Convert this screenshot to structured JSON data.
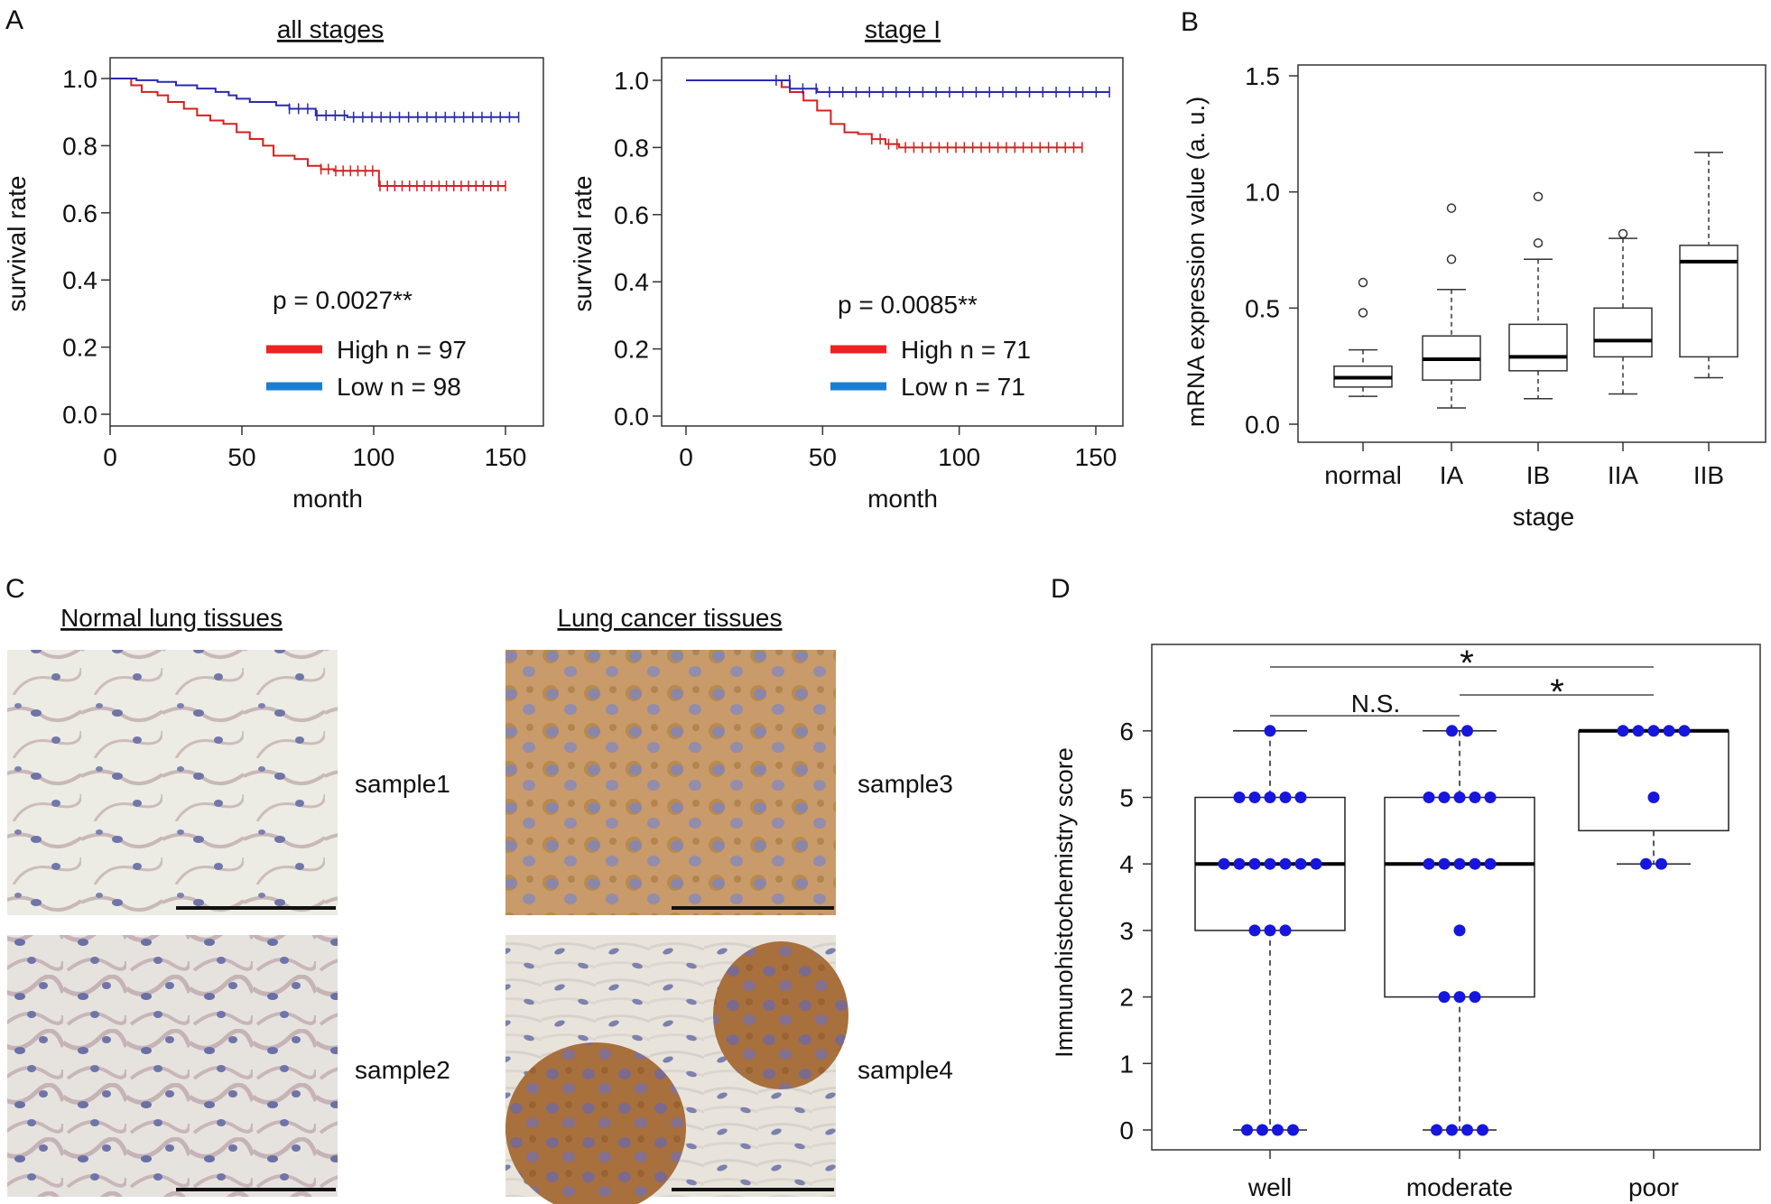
{
  "panels": {
    "A": {
      "letter": "A",
      "plots": [
        {
          "title": "all stages",
          "xlabel": "month",
          "ylabel": "survival rate",
          "xticks": [
            0,
            50,
            100,
            150
          ],
          "yticks": [
            "0.0",
            "0.2",
            "0.4",
            "0.6",
            "0.8",
            "1.0"
          ],
          "pvalue": "p = 0.0027**",
          "legend": [
            {
              "label": "High n = 97",
              "color": "#ee2222"
            },
            {
              "label": "Low n = 98",
              "color": "#1a7fd4"
            }
          ]
        },
        {
          "title": "stage I",
          "xlabel": "month",
          "ylabel": "survival rate",
          "xticks": [
            0,
            50,
            100,
            150
          ],
          "yticks": [
            "0.0",
            "0.2",
            "0.4",
            "0.6",
            "0.8",
            "1.0"
          ],
          "pvalue": "p = 0.0085**",
          "legend": [
            {
              "label": "High n = 71",
              "color": "#ee2222"
            },
            {
              "label": "Low n = 71",
              "color": "#1a7fd4"
            }
          ]
        }
      ]
    },
    "B": {
      "letter": "B",
      "xlabel": "stage",
      "ylabel": "mRNA expression value (a. u.)",
      "yticks": [
        "0.0",
        "0.5",
        "1.0",
        "1.5"
      ]
    },
    "C": {
      "letter": "C",
      "normal_label": "Normal lung tissues",
      "cancer_label": "Lung cancer tissues",
      "samples": [
        "sample1",
        "sample2",
        "sample3",
        "sample4"
      ]
    },
    "D": {
      "letter": "D",
      "ylabel": "Immunohistochemistry score",
      "yticks": [
        "0",
        "1",
        "2",
        "3",
        "4",
        "5",
        "6"
      ],
      "sig_labels": [
        "*",
        "N.S.",
        "*"
      ]
    }
  },
  "chart_data": [
    {
      "type": "line",
      "title": "all stages",
      "xlabel": "month",
      "ylabel": "survival rate",
      "xlim": [
        0,
        155
      ],
      "ylim": [
        0,
        1
      ],
      "series": [
        {
          "name": "High n = 97",
          "color": "#ee2222",
          "x": [
            0,
            8,
            12,
            18,
            22,
            28,
            33,
            38,
            43,
            48,
            53,
            58,
            62,
            70,
            75,
            80,
            85,
            102,
            150
          ],
          "y": [
            1.0,
            0.98,
            0.96,
            0.95,
            0.93,
            0.91,
            0.89,
            0.875,
            0.865,
            0.84,
            0.82,
            0.8,
            0.77,
            0.76,
            0.74,
            0.73,
            0.725,
            0.68,
            0.68
          ]
        },
        {
          "name": "Low n = 98",
          "color": "#1a7fd4",
          "x": [
            0,
            10,
            18,
            25,
            33,
            40,
            45,
            48,
            53,
            63,
            68,
            78,
            90,
            155
          ],
          "y": [
            1.0,
            0.995,
            0.99,
            0.98,
            0.97,
            0.96,
            0.95,
            0.94,
            0.93,
            0.92,
            0.91,
            0.89,
            0.885,
            0.885
          ]
        }
      ]
    },
    {
      "type": "line",
      "title": "stage I",
      "xlabel": "month",
      "ylabel": "survival rate",
      "xlim": [
        0,
        155
      ],
      "ylim": [
        0,
        1
      ],
      "series": [
        {
          "name": "High n = 71",
          "color": "#ee2222",
          "x": [
            0,
            30,
            35,
            38,
            43,
            48,
            53,
            58,
            63,
            68,
            73,
            78,
            145
          ],
          "y": [
            1.0,
            1.0,
            0.98,
            0.965,
            0.94,
            0.91,
            0.87,
            0.845,
            0.84,
            0.825,
            0.81,
            0.8,
            0.8
          ]
        },
        {
          "name": "Low n = 71",
          "color": "#1a7fd4",
          "x": [
            0,
            33,
            38,
            48,
            155
          ],
          "y": [
            1.0,
            1.0,
            0.975,
            0.965,
            0.965
          ]
        }
      ]
    },
    {
      "type": "box",
      "xlabel": "stage",
      "ylabel": "mRNA expression value (a. u.)",
      "ylim": [
        0,
        1.5
      ],
      "categories": [
        "normal",
        "IA",
        "IB",
        "IIA",
        "IIB"
      ],
      "boxes": [
        {
          "min": 0.12,
          "q1": 0.16,
          "median": 0.2,
          "q3": 0.25,
          "max": 0.32,
          "outliers": [
            0.48,
            0.61
          ]
        },
        {
          "min": 0.07,
          "q1": 0.19,
          "median": 0.28,
          "q3": 0.38,
          "max": 0.58,
          "outliers": [
            0.71,
            0.93
          ]
        },
        {
          "min": 0.11,
          "q1": 0.23,
          "median": 0.29,
          "q3": 0.43,
          "max": 0.71,
          "outliers": [
            0.78,
            0.98
          ]
        },
        {
          "min": 0.13,
          "q1": 0.29,
          "median": 0.36,
          "q3": 0.5,
          "max": 0.8,
          "outliers": [
            0.82
          ]
        },
        {
          "min": 0.2,
          "q1": 0.29,
          "median": 0.7,
          "q3": 0.77,
          "max": 1.17,
          "outliers": []
        }
      ]
    },
    {
      "type": "box",
      "xlabel": "",
      "ylabel": "Immunohistochemistry score",
      "ylim": [
        -0.3,
        7.3
      ],
      "categories": [
        "well",
        "moderate",
        "poor"
      ],
      "boxes": [
        {
          "min": 0,
          "q1": 3,
          "median": 4,
          "q3": 5,
          "max": 6
        },
        {
          "min": 0,
          "q1": 2,
          "median": 4,
          "q3": 5,
          "max": 6
        },
        {
          "min": 4,
          "q1": 4.5,
          "median": 6,
          "q3": 6,
          "max": 6
        }
      ],
      "points": [
        {
          "group": 0,
          "score": 6,
          "count": 1
        },
        {
          "group": 0,
          "score": 5,
          "count": 5
        },
        {
          "group": 0,
          "score": 4,
          "count": 7
        },
        {
          "group": 0,
          "score": 3,
          "count": 3
        },
        {
          "group": 0,
          "score": 0,
          "count": 4
        },
        {
          "group": 1,
          "score": 6,
          "count": 2
        },
        {
          "group": 1,
          "score": 5,
          "count": 5
        },
        {
          "group": 1,
          "score": 4,
          "count": 5
        },
        {
          "group": 1,
          "score": 3,
          "count": 1
        },
        {
          "group": 1,
          "score": 2,
          "count": 3
        },
        {
          "group": 1,
          "score": 0,
          "count": 4
        },
        {
          "group": 2,
          "score": 6,
          "count": 5
        },
        {
          "group": 2,
          "score": 5,
          "count": 1
        },
        {
          "group": 2,
          "score": 4,
          "count": 2
        }
      ],
      "significance": [
        {
          "from": 0,
          "to": 2,
          "label": "*"
        },
        {
          "from": 0,
          "to": 1,
          "label": "N.S."
        },
        {
          "from": 1,
          "to": 2,
          "label": "*"
        }
      ]
    }
  ]
}
